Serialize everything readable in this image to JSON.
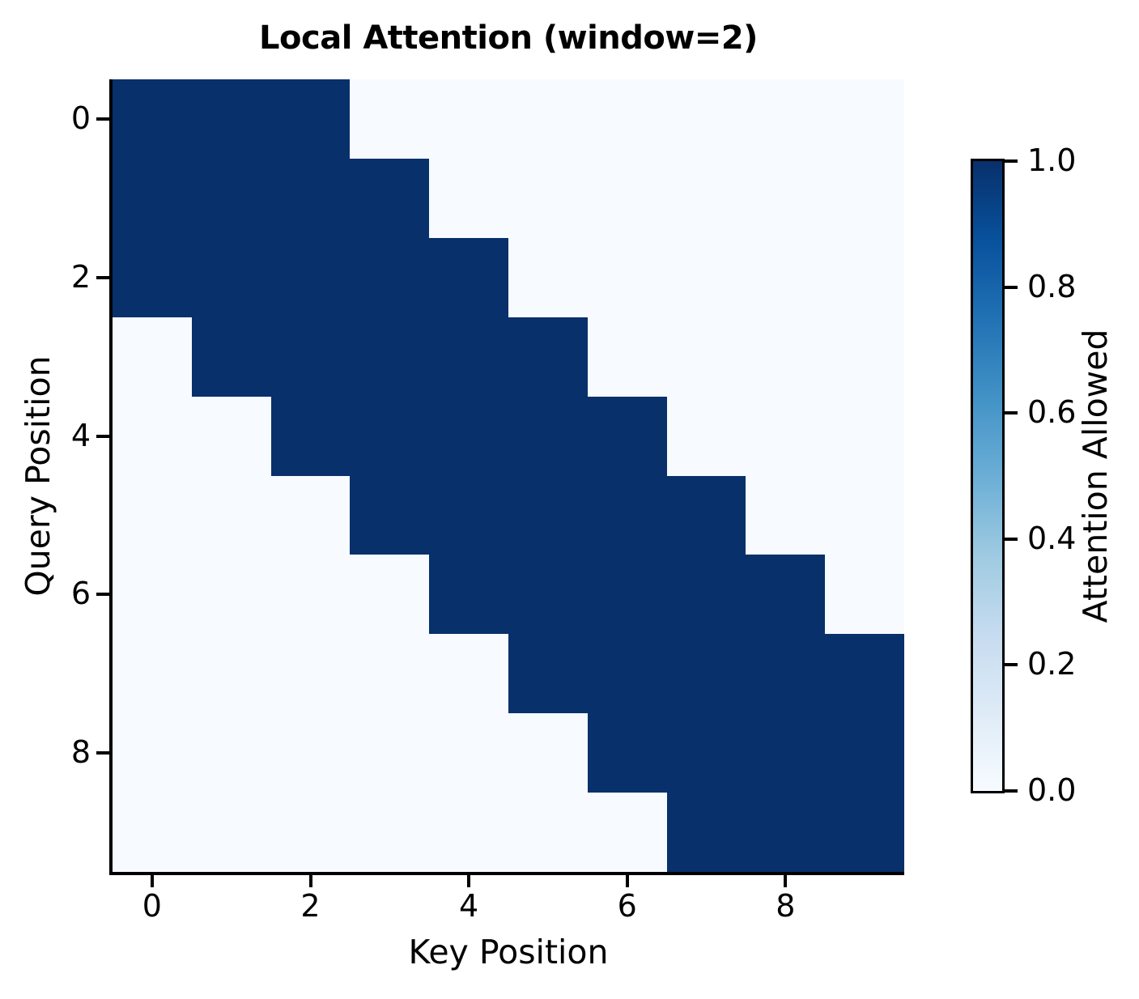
{
  "chart_data": {
    "type": "heatmap",
    "title": "Local Attention (window=2)",
    "xlabel": "Key Position",
    "ylabel": "Query Position",
    "n_rows": 10,
    "n_cols": 10,
    "window": 2,
    "x_ticks": [
      0,
      2,
      4,
      6,
      8
    ],
    "x_tick_labels": [
      "0",
      "2",
      "4",
      "6",
      "8"
    ],
    "y_ticks": [
      0,
      2,
      4,
      6,
      8
    ],
    "y_tick_labels": [
      "0",
      "2",
      "4",
      "6",
      "8"
    ],
    "value_range": [
      0,
      1
    ],
    "grid": false,
    "matrix": [
      [
        1,
        1,
        1,
        0,
        0,
        0,
        0,
        0,
        0,
        0
      ],
      [
        1,
        1,
        1,
        1,
        0,
        0,
        0,
        0,
        0,
        0
      ],
      [
        1,
        1,
        1,
        1,
        1,
        0,
        0,
        0,
        0,
        0
      ],
      [
        0,
        1,
        1,
        1,
        1,
        1,
        0,
        0,
        0,
        0
      ],
      [
        0,
        0,
        1,
        1,
        1,
        1,
        1,
        0,
        0,
        0
      ],
      [
        0,
        0,
        0,
        1,
        1,
        1,
        1,
        1,
        0,
        0
      ],
      [
        0,
        0,
        0,
        0,
        1,
        1,
        1,
        1,
        1,
        0
      ],
      [
        0,
        0,
        0,
        0,
        0,
        1,
        1,
        1,
        1,
        1
      ],
      [
        0,
        0,
        0,
        0,
        0,
        0,
        1,
        1,
        1,
        1
      ],
      [
        0,
        0,
        0,
        0,
        0,
        0,
        0,
        1,
        1,
        1
      ]
    ],
    "colors": {
      "value_high": "#08306b",
      "value_low": "#f7fbff",
      "spine": "#000000",
      "text": "#000000",
      "background": "#ffffff"
    },
    "colorbar": {
      "label": "Attention Allowed",
      "ticks": [
        1.0,
        0.8,
        0.6,
        0.4,
        0.2,
        0.0
      ],
      "tick_labels": [
        "1.0",
        "0.8",
        "0.6",
        "0.4",
        "0.2",
        "0.0"
      ],
      "colormap": "Blues",
      "gradient_stops_bottom_to_top": [
        "#f7fbff",
        "#deebf7",
        "#c6dbef",
        "#9ecae1",
        "#6baed6",
        "#4292c6",
        "#2171b5",
        "#08519c",
        "#08306b"
      ]
    }
  }
}
